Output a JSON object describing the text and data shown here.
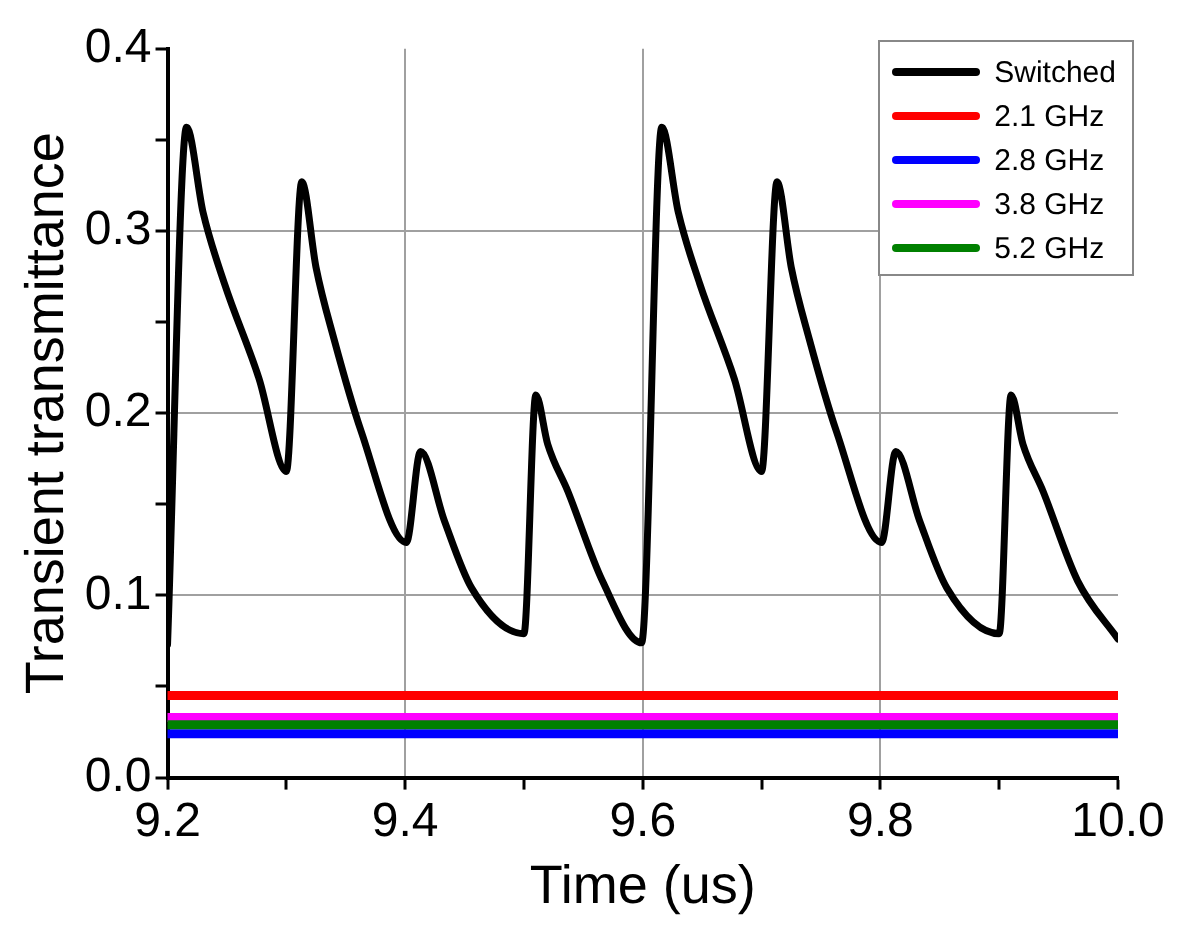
{
  "chart_data": {
    "type": "line",
    "xlabel": "Time (us)",
    "ylabel": "Transient transmittance",
    "xlim": [
      9.2,
      10.0
    ],
    "ylim": [
      0,
      0.4
    ],
    "xticks": [
      9.2,
      {
        "value": 9.3,
        "label": null
      },
      9.4,
      {
        "value": 9.5,
        "label": null
      },
      9.6,
      {
        "value": 9.7,
        "label": null
      },
      9.8,
      {
        "value": 9.9,
        "label": null
      },
      {
        "value": 10,
        "label": "10.0"
      }
    ],
    "yticks": [
      {
        "value": 0,
        "label": "0.0"
      },
      {
        "value": 0.05,
        "label": null
      },
      0.1,
      {
        "value": 0.15,
        "label": null
      },
      0.2,
      {
        "value": 0.25,
        "label": null
      },
      0.3,
      {
        "value": 0.35,
        "label": null
      },
      0.4
    ],
    "grid": true,
    "legend": "top right",
    "marker": "none",
    "line_style": "solid",
    "series": [
      {
        "name": "Switched",
        "color": "#000000",
        "x": [
          9.2,
          9.216,
          9.23,
          9.248,
          9.277,
          9.3,
          9.313,
          9.325,
          9.34,
          9.363,
          9.401,
          9.413,
          9.433,
          9.456,
          9.5,
          9.51,
          9.52,
          9.537,
          9.566,
          9.599,
          9.616,
          9.63,
          9.648,
          9.677,
          9.7,
          9.713,
          9.725,
          9.74,
          9.763,
          9.801,
          9.813,
          9.833,
          9.856,
          9.9,
          9.91,
          9.92,
          9.937,
          9.966,
          10.0
        ],
        "values": [
          0.073,
          0.357,
          0.31,
          0.271,
          0.219,
          0.168,
          0.327,
          0.28,
          0.241,
          0.19,
          0.129,
          0.179,
          0.141,
          0.104,
          0.079,
          0.21,
          0.183,
          0.157,
          0.108,
          0.074,
          0.357,
          0.31,
          0.271,
          0.219,
          0.168,
          0.327,
          0.28,
          0.241,
          0.19,
          0.129,
          0.179,
          0.141,
          0.104,
          0.079,
          0.21,
          0.183,
          0.157,
          0.108,
          0.076
        ]
      },
      {
        "name": "2.1 GHz",
        "color": "#ff0000",
        "x": [
          9.2,
          10.0
        ],
        "values": [
          0.045,
          0.045
        ]
      },
      {
        "name": "2.8 GHz",
        "color": "#0000ff",
        "x": [
          9.2,
          10.0
        ],
        "values": [
          0.024,
          0.024
        ]
      },
      {
        "name": "3.8 GHz",
        "color": "#ff00ff",
        "x": [
          9.2,
          10.0
        ],
        "values": [
          0.033,
          0.033
        ]
      },
      {
        "name": "5.2 GHz",
        "color": "#008000",
        "x": [
          9.2,
          10.0
        ],
        "values": [
          0.029,
          0.029
        ]
      }
    ]
  }
}
